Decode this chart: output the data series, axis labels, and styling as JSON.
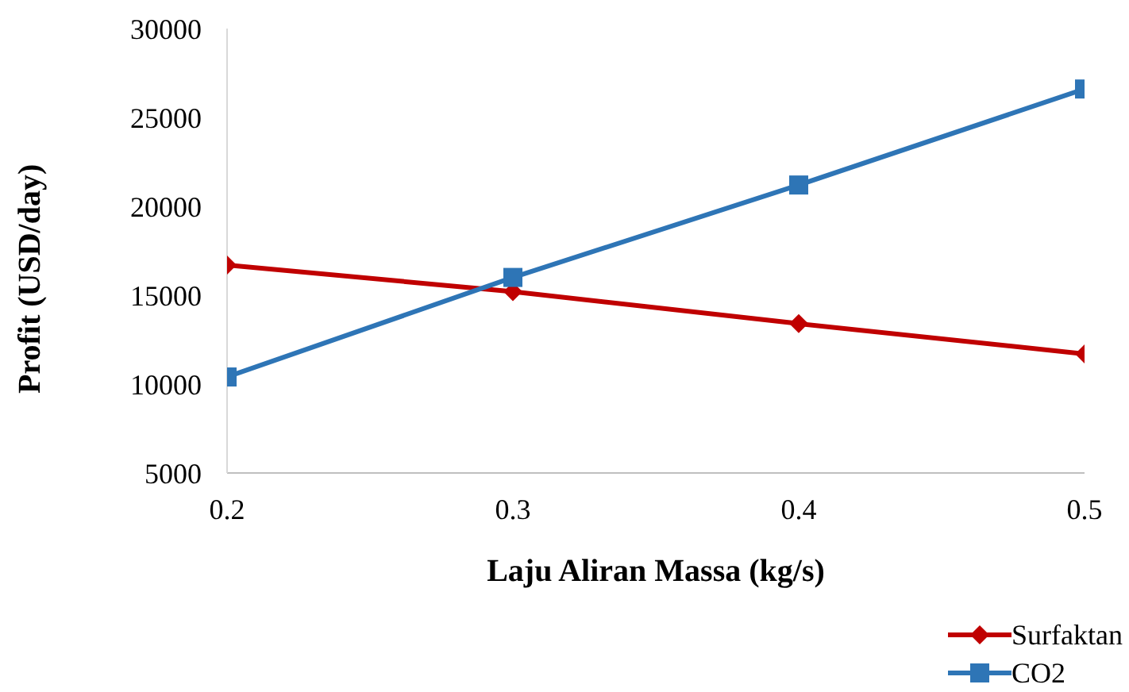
{
  "chart_data": {
    "type": "line",
    "xlabel": "Laju Aliran Massa (kg/s)",
    "ylabel": "Profit (USD/day)",
    "x": [
      0.2,
      0.3,
      0.4,
      0.5
    ],
    "series": [
      {
        "name": "Surfaktan",
        "color": "#c00000",
        "marker": "diamond",
        "values": [
          16700,
          15200,
          13400,
          11700
        ]
      },
      {
        "name": "CO2",
        "color": "#2e75b6",
        "marker": "square",
        "values": [
          10400,
          16000,
          21200,
          26600
        ]
      }
    ],
    "xlim": [
      0.2,
      0.5
    ],
    "xticks": [
      0.2,
      0.3,
      0.4,
      0.5
    ],
    "ylim": [
      5000,
      30000
    ],
    "yticks": [
      5000,
      10000,
      15000,
      20000,
      25000,
      30000
    ],
    "grid": false,
    "legend": "bottom right",
    "line_style": "solid"
  }
}
